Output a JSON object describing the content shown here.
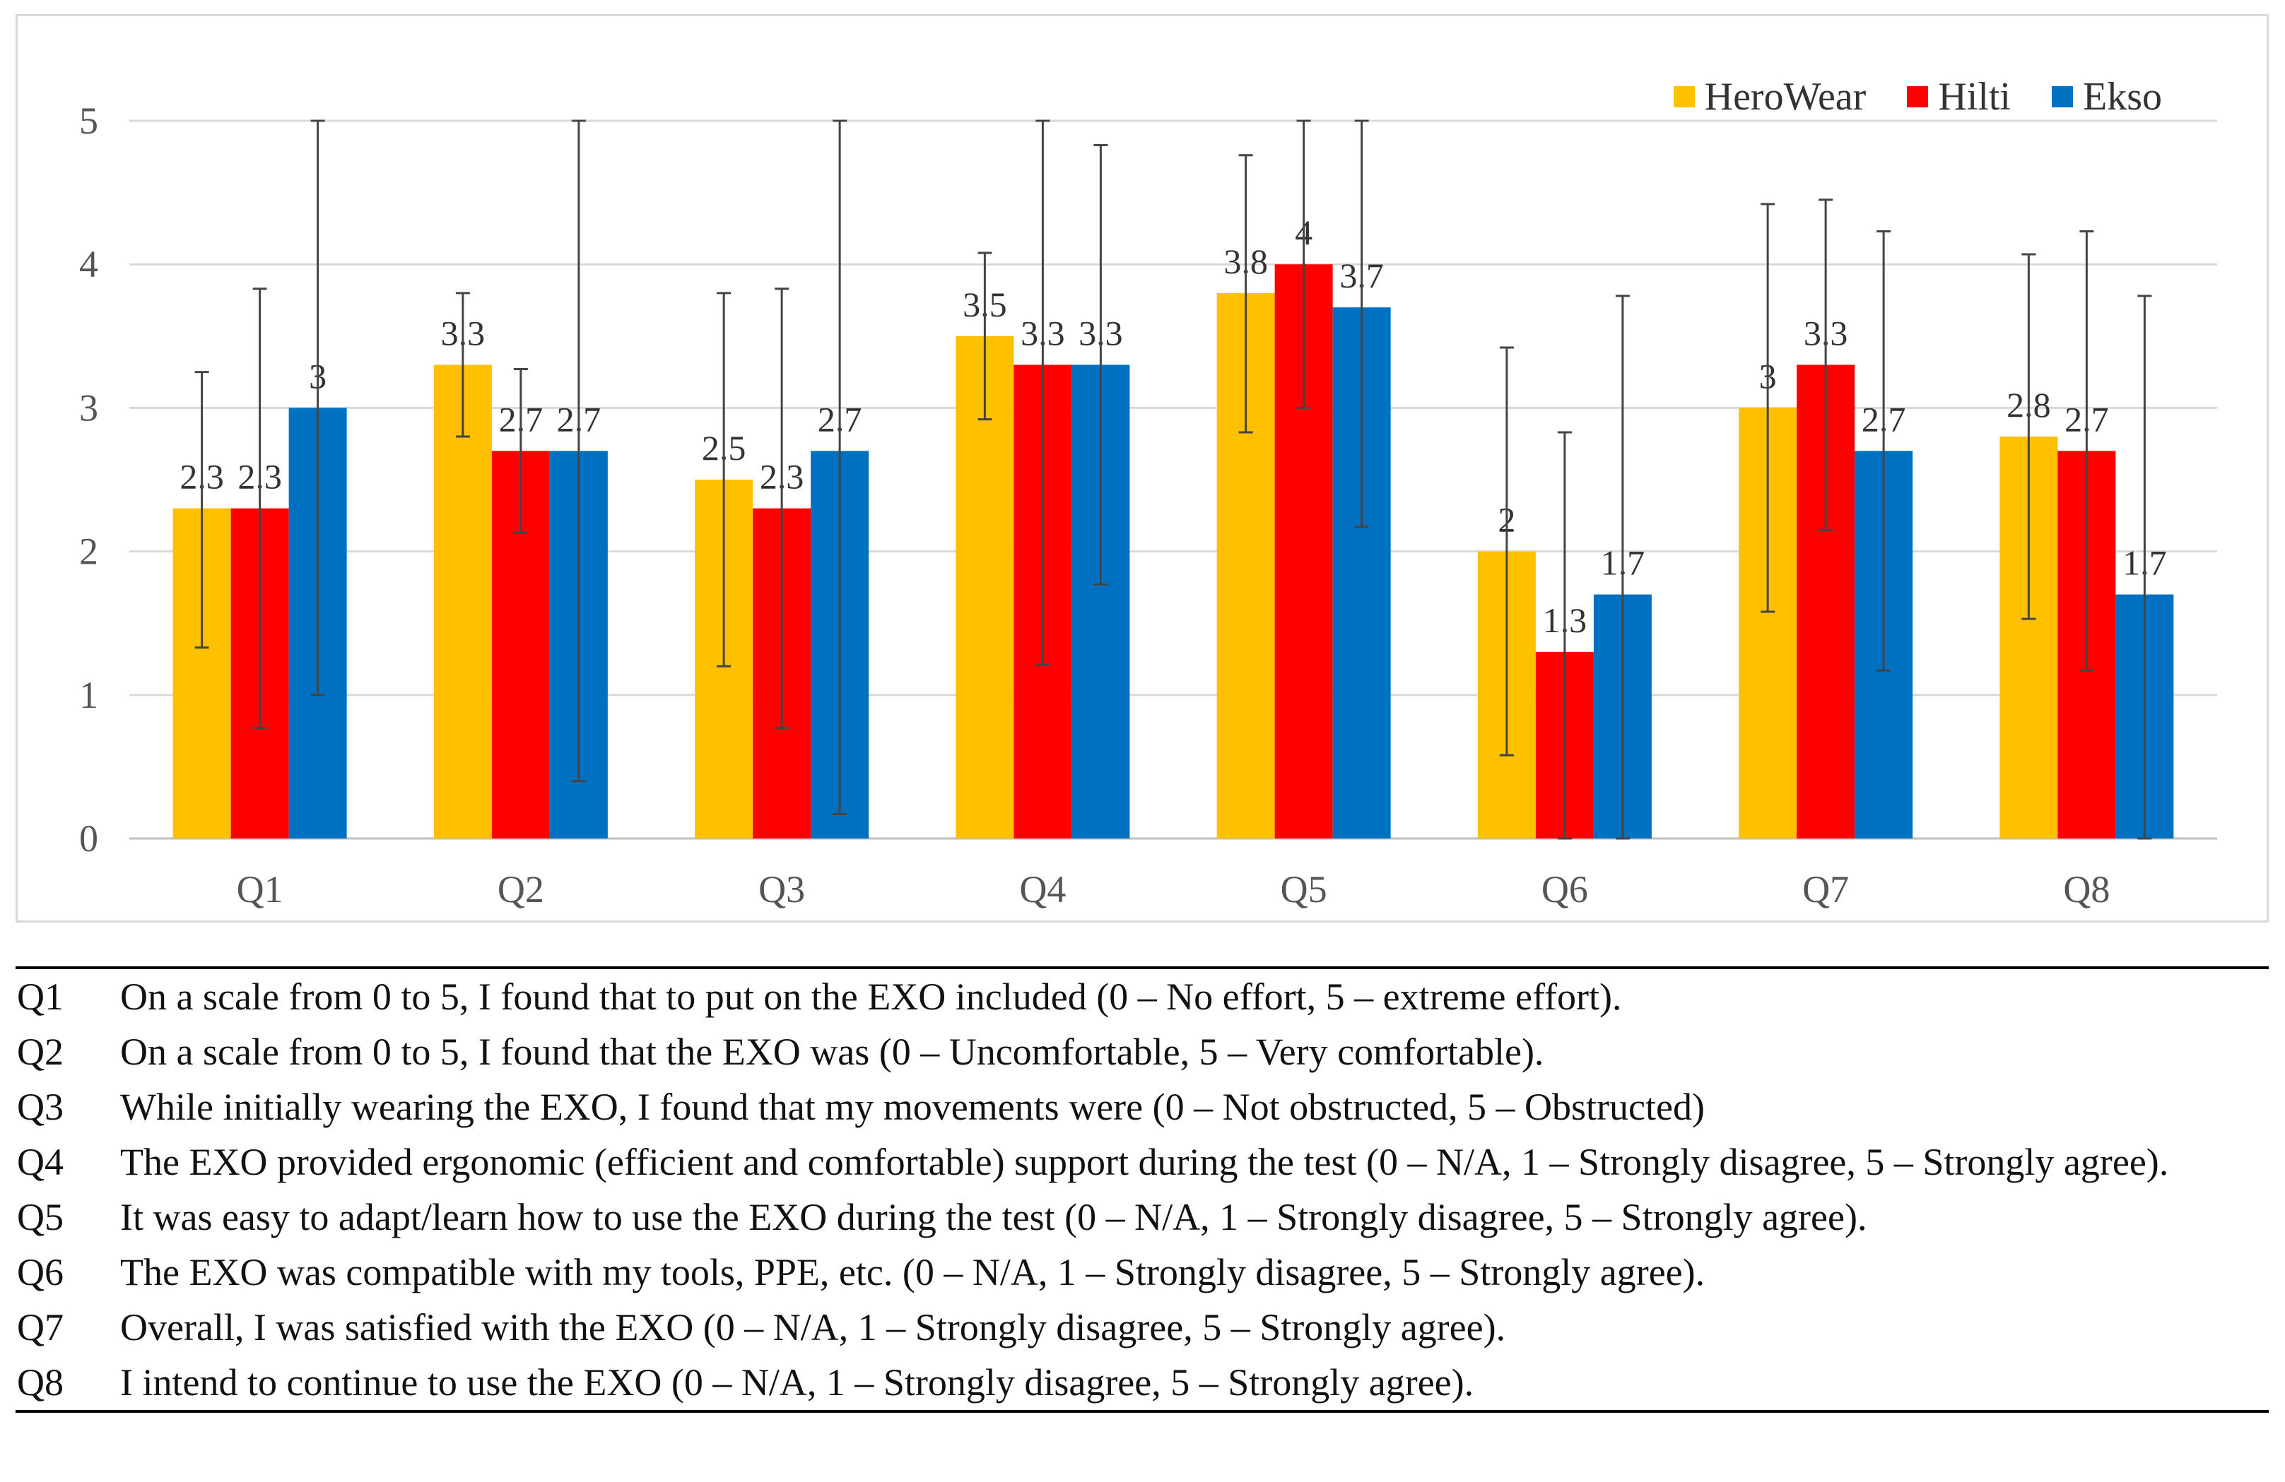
{
  "chart_data": {
    "type": "bar",
    "categories": [
      "Q1",
      "Q2",
      "Q3",
      "Q4",
      "Q5",
      "Q6",
      "Q7",
      "Q8"
    ],
    "series": [
      {
        "name": "HeroWear",
        "color": "#FFC000",
        "values": [
          2.3,
          3.3,
          2.5,
          3.5,
          3.8,
          2.0,
          3.0,
          2.8
        ],
        "labels": [
          "2.3",
          "3.3",
          "2.5",
          "3.5",
          "3.8",
          "2",
          "3",
          "2.8"
        ],
        "error_low": [
          1.33,
          2.8,
          1.2,
          2.92,
          2.83,
          0.58,
          1.58,
          1.53
        ],
        "error_high": [
          3.25,
          3.8,
          3.8,
          4.08,
          4.76,
          3.42,
          4.42,
          4.07
        ]
      },
      {
        "name": "Hilti",
        "color": "#FF0000",
        "values": [
          2.3,
          2.7,
          2.3,
          3.3,
          4.0,
          1.3,
          3.3,
          2.7
        ],
        "labels": [
          "2.3",
          "2.7",
          "2.3",
          "3.3",
          "4",
          "1.3",
          "3.3",
          "2.7"
        ],
        "error_low": [
          0.77,
          2.13,
          0.77,
          1.21,
          3.0,
          0.0,
          2.15,
          1.17
        ],
        "error_high": [
          3.83,
          3.27,
          3.83,
          5.0,
          5.0,
          2.83,
          4.45,
          4.23
        ]
      },
      {
        "name": "Ekso",
        "color": "#0070C0",
        "values": [
          3.0,
          2.7,
          2.7,
          3.3,
          3.7,
          1.7,
          2.7,
          1.7
        ],
        "labels": [
          "3",
          "2.7",
          "2.7",
          "3.3",
          "3.7",
          "1.7",
          "2.7",
          "1.7"
        ],
        "error_low": [
          1.0,
          0.4,
          0.17,
          1.77,
          2.17,
          0.0,
          1.17,
          0.0
        ],
        "error_high": [
          5.0,
          5.0,
          5.0,
          4.83,
          5.0,
          3.78,
          4.23,
          3.78
        ]
      }
    ],
    "yticks": [
      "0",
      "1",
      "2",
      "3",
      "4",
      "5"
    ],
    "ylim": [
      0,
      5
    ],
    "title": "",
    "xlabel": "",
    "ylabel": "",
    "grid": true,
    "legend_position": "top-right"
  },
  "questions": [
    {
      "id": "Q1",
      "text": "On a scale from 0 to 5, I found that to put on the EXO included (0 – No effort, 5 – extreme effort)."
    },
    {
      "id": "Q2",
      "text": "On a scale from 0 to 5, I found that the EXO was (0 – Uncomfortable, 5 – Very comfortable)."
    },
    {
      "id": "Q3",
      "text": "While initially wearing the EXO, I found that my movements were (0 – Not obstructed, 5 – Obstructed)"
    },
    {
      "id": "Q4",
      "text": "The EXO provided ergonomic (efficient and comfortable) support during the test (0 – N/A, 1 – Strongly disagree, 5 – Strongly agree)."
    },
    {
      "id": "Q5",
      "text": "It was easy to adapt/learn how to use the EXO during the test  (0 – N/A, 1 – Strongly disagree, 5 – Strongly agree)."
    },
    {
      "id": "Q6",
      "text": "The EXO was compatible with my tools, PPE, etc. (0 – N/A, 1 – Strongly disagree, 5 – Strongly agree)."
    },
    {
      "id": "Q7",
      "text": "Overall, I was satisfied with the EXO (0 – N/A, 1 – Strongly disagree, 5 – Strongly agree)."
    },
    {
      "id": "Q8",
      "text": "I intend to continue to use the EXO (0 – N/A, 1 – Strongly disagree, 5 – Strongly agree)."
    }
  ]
}
